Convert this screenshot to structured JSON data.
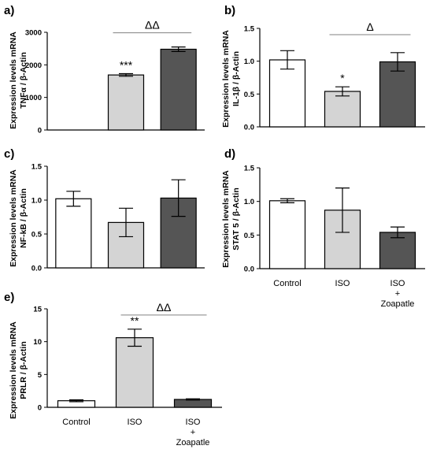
{
  "colors": {
    "control": "#ffffff",
    "iso": "#d4d4d4",
    "iso_zoapatle": "#555555",
    "bracket": "#808080",
    "ink": "#000000"
  },
  "chart_data": [
    {
      "panel": "a)",
      "type": "bar",
      "ylabel_line1": "Expression levels mRNA",
      "ylabel_line2": "TNFα / β-Actin",
      "ylim": [
        0,
        3000
      ],
      "yticks": [
        "0",
        "1000",
        "2000",
        "3000"
      ],
      "ytick_values": [
        0,
        1000,
        2000,
        3000
      ],
      "categories": [
        "Control",
        "ISO",
        "ISO + Zoapatle"
      ],
      "x_labels_shown": false,
      "values": [
        0,
        1690,
        2480
      ],
      "errors": [
        0,
        40,
        70
      ],
      "bar_annotations": [
        "",
        "***",
        ""
      ],
      "bracket": {
        "from": 1,
        "to": 2,
        "label": "ΔΔ"
      }
    },
    {
      "panel": "b)",
      "type": "bar",
      "ylabel_line1": "Expression levels mRNA",
      "ylabel_line2": "IL-1β / β-Actin",
      "ylim": [
        0,
        1.5
      ],
      "yticks": [
        "0.0",
        "0.5",
        "1.0",
        "1.5"
      ],
      "ytick_values": [
        0,
        0.5,
        1.0,
        1.5
      ],
      "categories": [
        "Control",
        "ISO",
        "ISO + Zoapatle"
      ],
      "x_labels_shown": false,
      "values": [
        1.02,
        0.54,
        0.99
      ],
      "errors": [
        0.14,
        0.07,
        0.14
      ],
      "bar_annotations": [
        "",
        "*",
        ""
      ],
      "bracket": {
        "from": 1,
        "to": 2,
        "label": "Δ"
      }
    },
    {
      "panel": "c)",
      "type": "bar",
      "ylabel_line1": "Expression levels mRNA",
      "ylabel_line2": "NF-kB / β-Actin",
      "ylim": [
        0,
        1.5
      ],
      "yticks": [
        "0.0",
        "0.5",
        "1.0",
        "1.5"
      ],
      "ytick_values": [
        0,
        0.5,
        1.0,
        1.5
      ],
      "categories": [
        "Control",
        "ISO",
        "ISO + Zoapatle"
      ],
      "x_labels_shown": false,
      "values": [
        1.02,
        0.67,
        1.03
      ],
      "errors": [
        0.11,
        0.21,
        0.27
      ],
      "bar_annotations": [
        "",
        "",
        ""
      ],
      "bracket": null
    },
    {
      "panel": "d)",
      "type": "bar",
      "ylabel_line1": "Expression levels mRNA",
      "ylabel_line2": "STAT 5 / β-Actin",
      "ylim": [
        0,
        1.5
      ],
      "yticks": [
        "0.0",
        "0.5",
        "1.0",
        "1.5"
      ],
      "ytick_values": [
        0,
        0.5,
        1.0,
        1.5
      ],
      "categories": [
        "Control",
        "ISO",
        "ISO + Zoapatle"
      ],
      "x_labels_shown": true,
      "x_label_lines": [
        [
          "Control"
        ],
        [
          "ISO"
        ],
        [
          "ISO",
          "+",
          "Zoapatle"
        ]
      ],
      "values": [
        1.01,
        0.87,
        0.54
      ],
      "errors": [
        0.03,
        0.33,
        0.08
      ],
      "bar_annotations": [
        "",
        "",
        ""
      ],
      "bracket": null
    },
    {
      "panel": "e)",
      "type": "bar",
      "ylabel_line1": "Expression levels mRNA",
      "ylabel_line2": "PRLR / β-Actin",
      "ylim": [
        0,
        15
      ],
      "yticks": [
        "0",
        "5",
        "10",
        "15"
      ],
      "ytick_values": [
        0,
        5,
        10,
        15
      ],
      "categories": [
        "Control",
        "ISO",
        "ISO + Zoapatle"
      ],
      "x_labels_shown": true,
      "x_label_lines": [
        [
          "Control"
        ],
        [
          "ISO"
        ],
        [
          "ISO",
          "+",
          "Zoapatle"
        ]
      ],
      "values": [
        1.0,
        10.6,
        1.2
      ],
      "errors": [
        0.15,
        1.3,
        0.1
      ],
      "bar_annotations": [
        "",
        "**",
        ""
      ],
      "bracket": {
        "from": 1,
        "to": 2,
        "label": "ΔΔ"
      }
    }
  ]
}
